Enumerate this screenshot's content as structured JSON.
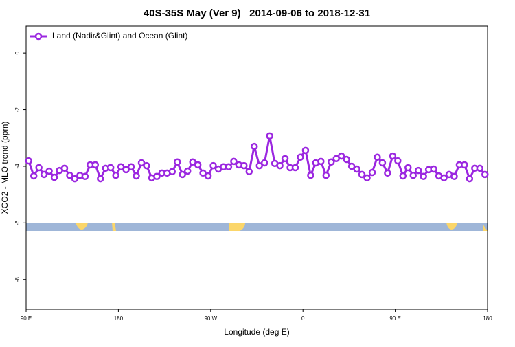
{
  "chart_data": {
    "type": "line",
    "title": "40S-35S May (Ver 9)   2014-09-06 to 2018-12-31",
    "x_label": "Longitude (deg E)",
    "y_label": "XCO2 - MLO trend (ppm)",
    "x": [
      92.5,
      97.5,
      102.5,
      107.5,
      112.5,
      117.5,
      122.5,
      127.5,
      132.5,
      137.5,
      142.5,
      147.5,
      152.5,
      157.5,
      162.5,
      167.5,
      172.5,
      177.5,
      182.5,
      187.5,
      192.5,
      197.5,
      202.5,
      207.5,
      212.5,
      217.5,
      222.5,
      227.5,
      232.5,
      237.5,
      242.5,
      247.5,
      252.5,
      257.5,
      262.5,
      267.5,
      272.5,
      277.5,
      282.5,
      287.5,
      292.5,
      297.5,
      302.5,
      307.5,
      312.5,
      317.5,
      322.5,
      327.5,
      332.5,
      337.5,
      342.5,
      347.5,
      352.5,
      357.5,
      362.5,
      367.5,
      372.5,
      377.5,
      382.5,
      387.5,
      392.5,
      397.5,
      402.5,
      407.5,
      412.5,
      417.5,
      422.5,
      427.5,
      432.5,
      437.5,
      442.5,
      447.5,
      452.5,
      457.5,
      462.5,
      467.5,
      472.5,
      477.5,
      482.5,
      487.5,
      492.5,
      497.5,
      502.5,
      507.5,
      512.5,
      517.5,
      522.5,
      527.5,
      532.5,
      537.5
    ],
    "series": [
      {
        "name": "Land (Nadir&Glint) and Ocean (Glint)",
        "color": "#9b27e0",
        "values": [
          -3.81,
          -4.34,
          -4.05,
          -4.29,
          -4.17,
          -4.39,
          -4.15,
          -4.07,
          -4.32,
          -4.44,
          -4.32,
          -4.36,
          -3.95,
          -3.95,
          -4.44,
          -4.07,
          -4.05,
          -4.32,
          -4.02,
          -4.12,
          -4.02,
          -4.34,
          -3.88,
          -3.98,
          -4.41,
          -4.36,
          -4.24,
          -4.24,
          -4.19,
          -3.85,
          -4.29,
          -4.17,
          -3.85,
          -3.95,
          -4.24,
          -4.34,
          -3.98,
          -4.1,
          -4.02,
          -4.02,
          -3.83,
          -3.95,
          -3.98,
          -4.19,
          -3.3,
          -3.98,
          -3.88,
          -2.93,
          -3.9,
          -3.98,
          -3.73,
          -4.05,
          -4.05,
          -3.68,
          -3.44,
          -4.32,
          -3.88,
          -3.83,
          -4.32,
          -3.85,
          -3.73,
          -3.64,
          -3.76,
          -4.0,
          -4.1,
          -4.29,
          -4.41,
          -4.22,
          -3.68,
          -3.88,
          -4.24,
          -3.64,
          -3.81,
          -4.34,
          -4.05,
          -4.32,
          -4.15,
          -4.36,
          -4.12,
          -4.1,
          -4.34,
          -4.41,
          -4.29,
          -4.36,
          -3.95,
          -3.95,
          -4.44,
          -4.07,
          -4.07,
          -4.29
        ]
      }
    ],
    "xlim": [
      90,
      540
    ],
    "xticks": [
      {
        "value": 90,
        "label": "90 E"
      },
      180,
      {
        "value": 270,
        "label": "90 W"
      },
      {
        "value": 360,
        "label": "0"
      },
      {
        "value": 450,
        "label": "90 E"
      },
      {
        "value": 540,
        "label": "180"
      }
    ],
    "ylim": [
      -9.05,
      0.95
    ],
    "yticks": [
      0,
      -2,
      -4,
      -6,
      -8
    ],
    "legend": "top-left",
    "grid": false
  }
}
